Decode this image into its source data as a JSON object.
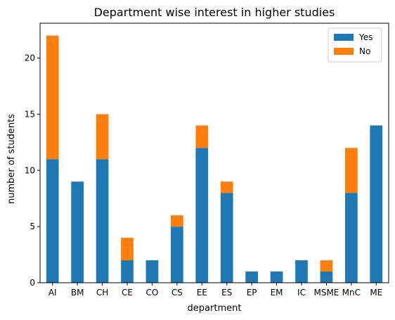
{
  "chart_data": {
    "type": "bar",
    "stacked": true,
    "title": "Department wise interest in higher studies",
    "xlabel": "department",
    "ylabel": "number of students",
    "categories": [
      "AI",
      "BM",
      "CH",
      "CE",
      "CO",
      "CS",
      "EE",
      "ES",
      "EP",
      "EM",
      "IC",
      "MSME",
      "MnC",
      "ME"
    ],
    "series": [
      {
        "name": "Yes",
        "color": "#1f77b4",
        "values": [
          11,
          9,
          11,
          2,
          2,
          5,
          12,
          8,
          1,
          1,
          2,
          1,
          8,
          14
        ]
      },
      {
        "name": "No",
        "color": "#ff7f0e",
        "values": [
          11,
          0,
          4,
          2,
          0,
          1,
          2,
          1,
          0,
          0,
          0,
          1,
          4,
          0
        ]
      }
    ],
    "ylim": [
      0,
      23.1
    ],
    "yticks": [
      0,
      5,
      10,
      15,
      20
    ],
    "grid": false,
    "legend_position": "top-right"
  }
}
